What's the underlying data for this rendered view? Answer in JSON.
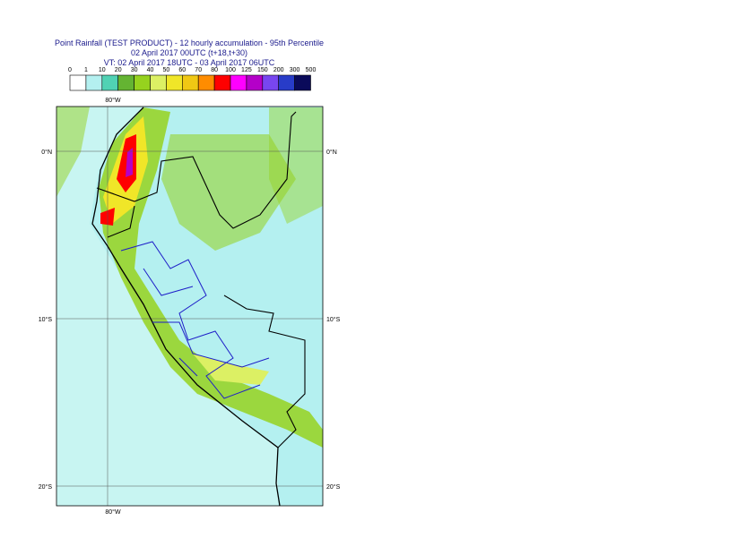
{
  "title": [
    "Point Rainfall (TEST PRODUCT) - 12 hourly accumulation - 95th Percentile",
    "02 April 2017 00UTC (t+18,t+30)",
    "VT: 02 April 2017 18UTC - 03 April 2017 06UTC"
  ],
  "legend": {
    "levels": [
      0,
      1,
      10,
      20,
      30,
      40,
      50,
      60,
      70,
      80,
      100,
      125,
      150,
      200,
      300,
      500
    ],
    "colors": [
      "#ffffff",
      "#b4f0f0",
      "#50d2b4",
      "#64b432",
      "#96d21e",
      "#dcf064",
      "#f0e628",
      "#f0c814",
      "#ff8c00",
      "#ff0000",
      "#ff00ff",
      "#b400c8",
      "#7846f0",
      "#283cc8",
      "#0a0a5a"
    ]
  },
  "map": {
    "lon_labels": [
      "80°W"
    ],
    "lat_labels": [
      "0°N",
      "10°S",
      "20°S"
    ]
  }
}
